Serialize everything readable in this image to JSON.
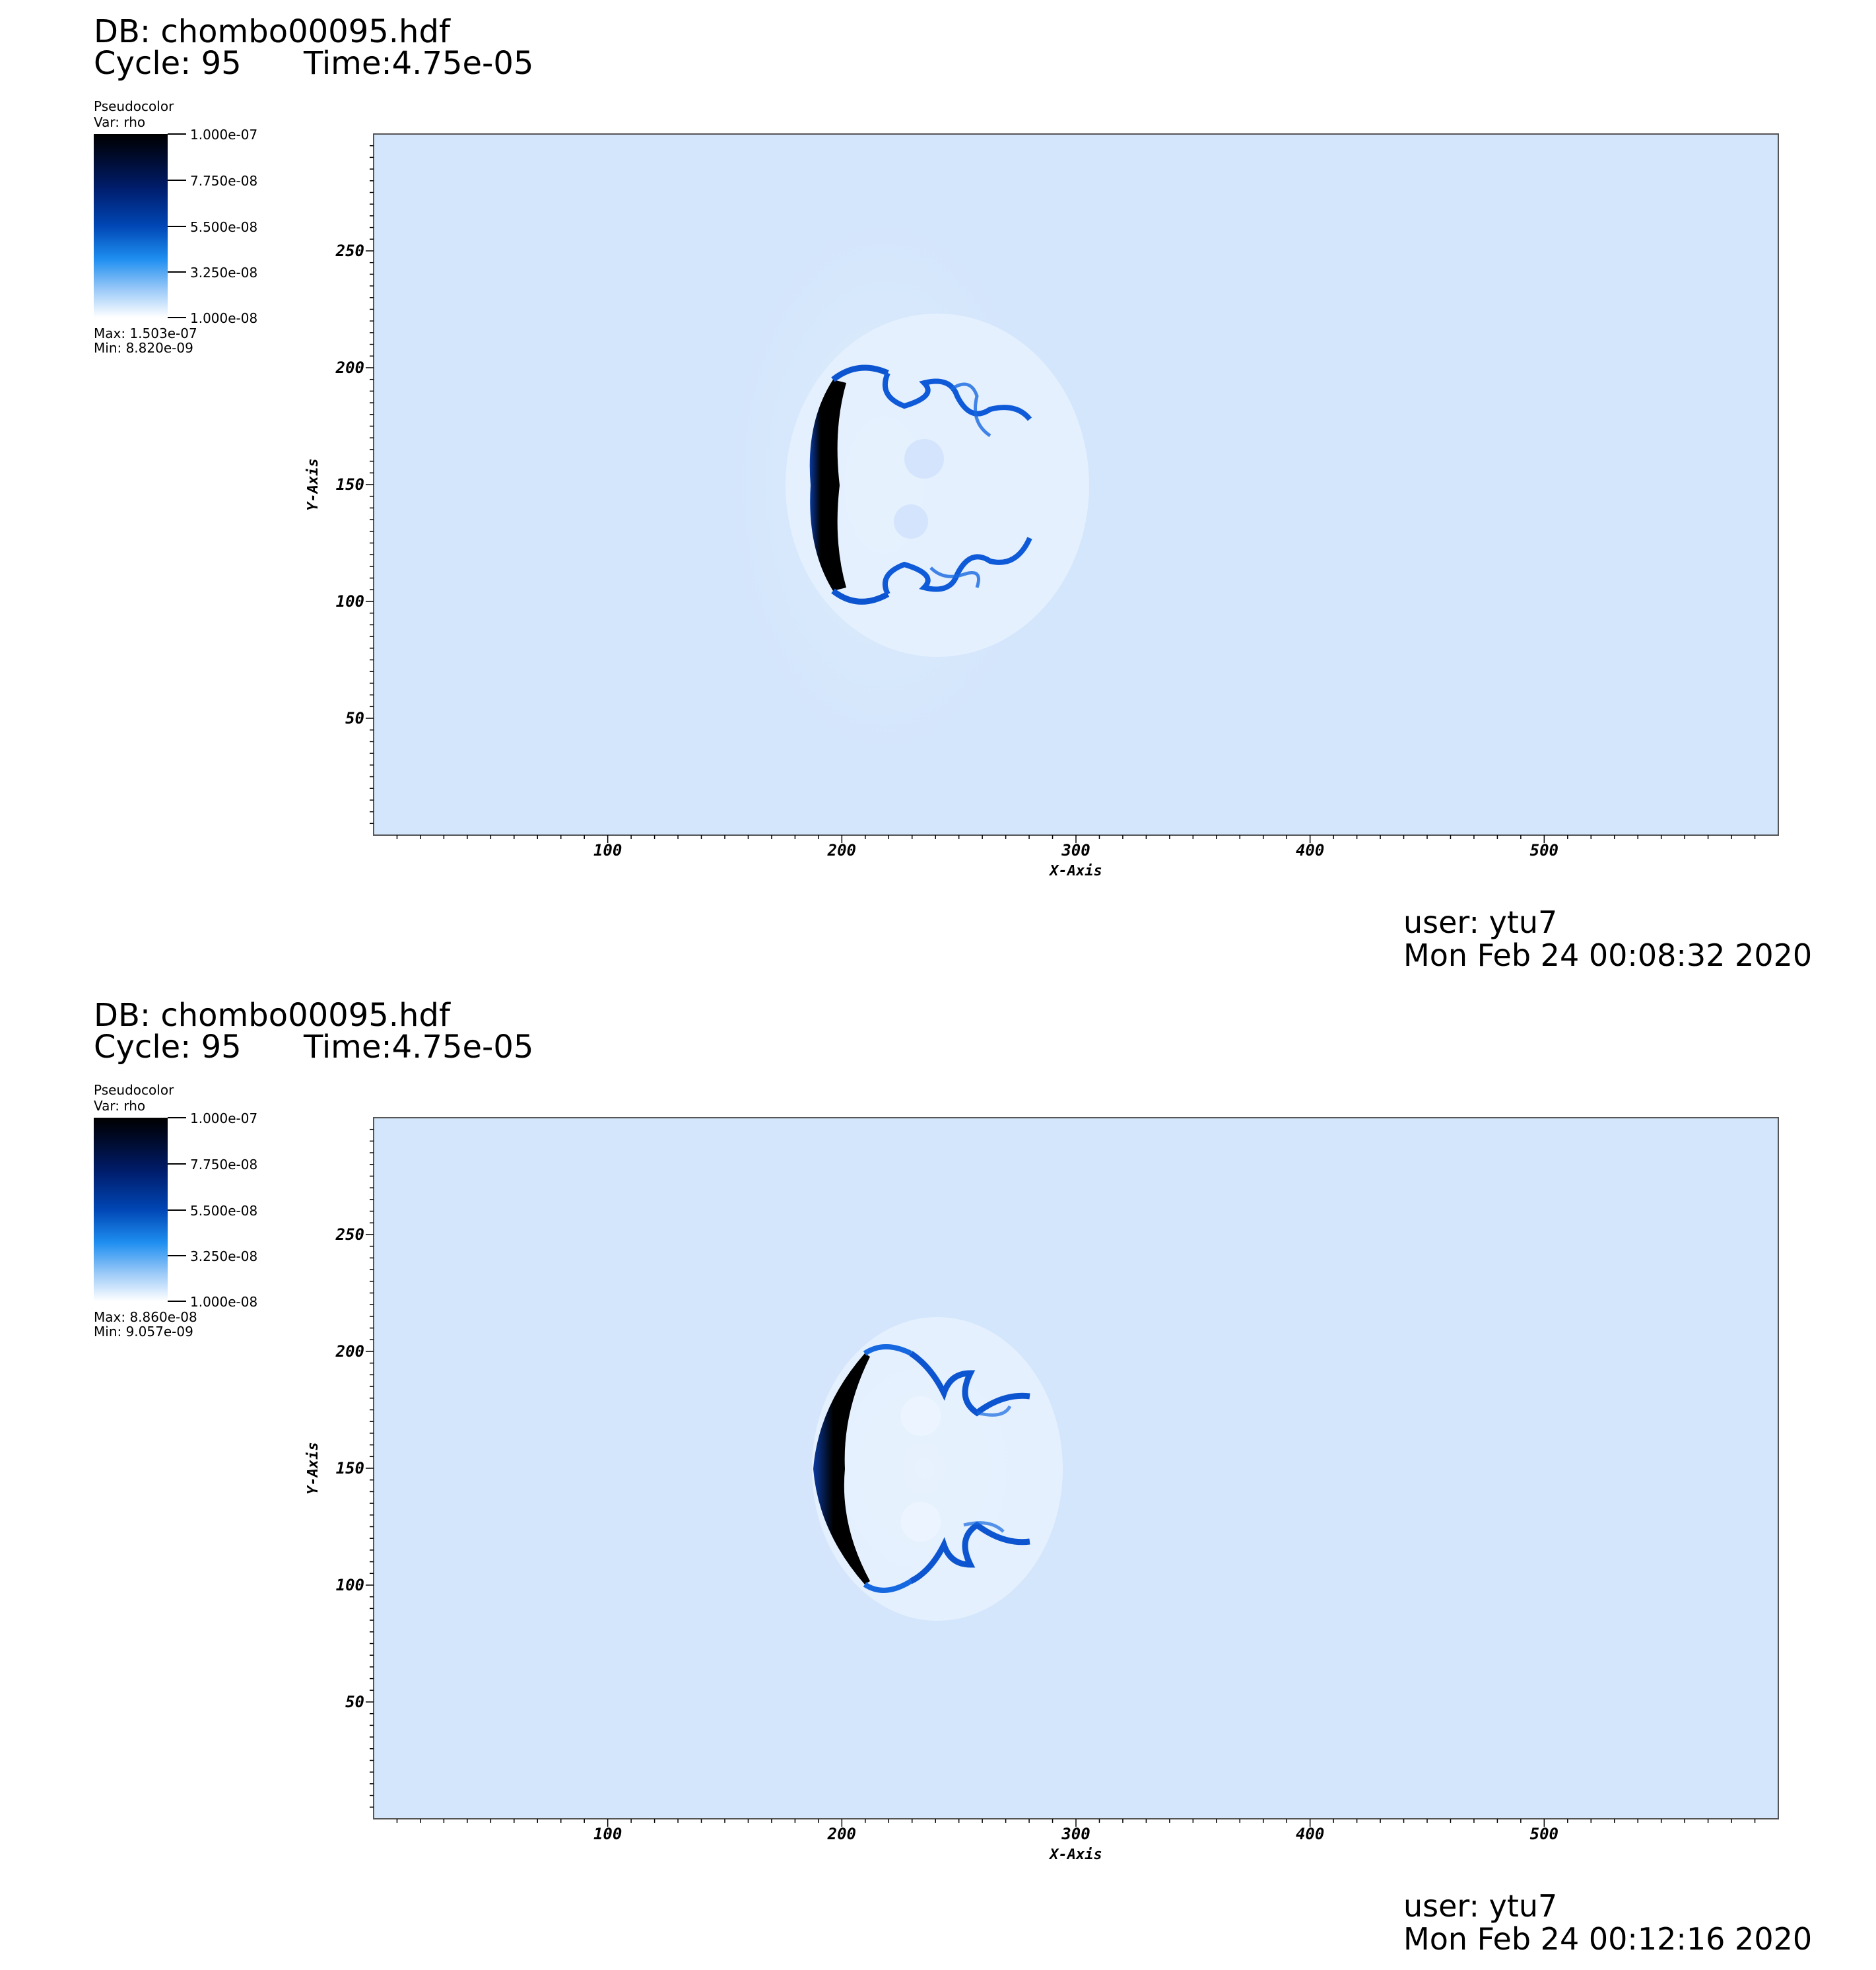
{
  "panels": [
    {
      "db": "DB: chombo00095.hdf",
      "cycle": "Cycle: 95",
      "time": "Time:4.75e-05",
      "legend": {
        "title": "Pseudocolor",
        "var": "Var: rho",
        "ticks": [
          "1.000e-07",
          "7.750e-08",
          "5.500e-08",
          "3.250e-08",
          "1.000e-08"
        ],
        "max": "Max:  1.503e-07",
        "min": "Min:  8.820e-09"
      },
      "user": "user: ytu7",
      "date": "Mon Feb 24 00:08:32 2020"
    },
    {
      "db": "DB: chombo00095.hdf",
      "cycle": "Cycle: 95",
      "time": "Time:4.75e-05",
      "legend": {
        "title": "Pseudocolor",
        "var": "Var: rho",
        "ticks": [
          "1.000e-07",
          "7.750e-08",
          "5.500e-08",
          "3.250e-08",
          "1.000e-08"
        ],
        "max": "Max:  8.860e-08",
        "min": "Min:  9.057e-09"
      },
      "user": "user: ytu7",
      "date": "Mon Feb 24 00:12:16 2020"
    }
  ],
  "chart_data": [
    {
      "type": "heatmap",
      "variable": "rho",
      "xlabel": "X-Axis",
      "ylabel": "Y-Axis",
      "xlim": [
        0,
        600
      ],
      "ylim": [
        0,
        300
      ],
      "xticks": [
        100,
        200,
        300,
        400,
        500
      ],
      "yticks": [
        50,
        100,
        150,
        200,
        250
      ],
      "colorbar": {
        "min": 1e-08,
        "max": 1e-07,
        "ticks": [
          1e-07,
          7.75e-08,
          5.5e-08,
          3.25e-08,
          1e-08
        ]
      },
      "data_max": 1.503e-07,
      "data_min": 8.82e-09,
      "background_color": "#d4e6fc",
      "feature_x": [
        186,
        280
      ],
      "feature_y": [
        100,
        200
      ]
    },
    {
      "type": "heatmap",
      "variable": "rho",
      "xlabel": "X-Axis",
      "ylabel": "Y-Axis",
      "xlim": [
        0,
        600
      ],
      "ylim": [
        0,
        300
      ],
      "xticks": [
        100,
        200,
        300,
        400,
        500
      ],
      "yticks": [
        50,
        100,
        150,
        200,
        250
      ],
      "colorbar": {
        "min": 1e-08,
        "max": 1e-07,
        "ticks": [
          1e-07,
          7.75e-08,
          5.5e-08,
          3.25e-08,
          1e-08
        ]
      },
      "data_max": 8.86e-08,
      "data_min": 9.057e-09,
      "background_color": "#d4e6fc",
      "feature_x": [
        186,
        280
      ],
      "feature_y": [
        100,
        200
      ]
    }
  ]
}
